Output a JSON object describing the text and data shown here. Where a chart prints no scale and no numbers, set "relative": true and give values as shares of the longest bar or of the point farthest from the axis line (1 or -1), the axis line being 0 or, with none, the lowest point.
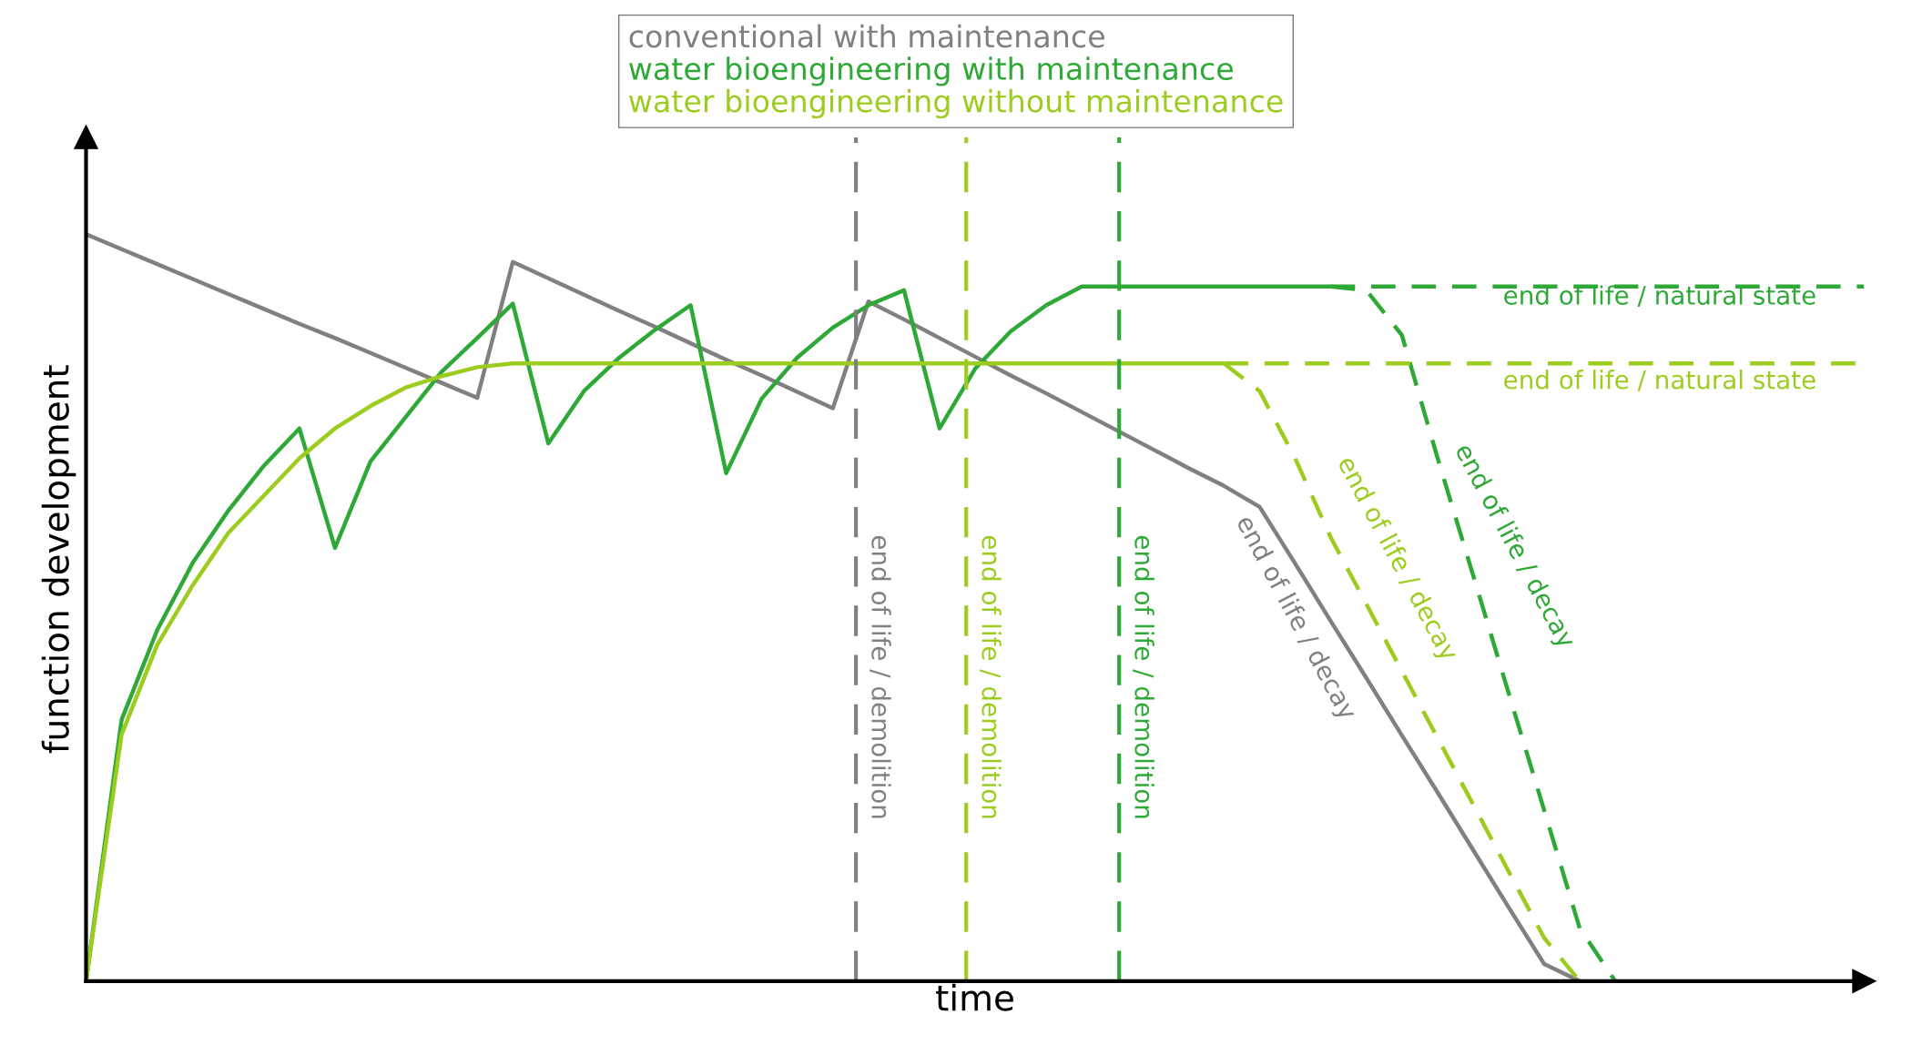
{
  "chart_data": {
    "type": "line",
    "relative": true,
    "xlabel": "time",
    "ylabel": "function development",
    "legend": "top",
    "marker": "none",
    "categories": [
      null,
      null,
      null,
      null,
      null,
      null,
      null,
      null,
      null,
      null,
      null,
      null,
      null,
      null,
      null,
      null,
      null,
      null,
      null,
      null,
      null,
      null,
      null,
      null,
      null,
      null,
      null,
      null,
      null,
      null,
      null,
      null,
      null,
      null,
      null,
      null,
      null,
      null,
      null,
      null,
      null,
      null,
      null,
      null,
      null,
      null,
      null,
      null,
      null,
      null,
      null
    ],
    "series": [
      {
        "name": "conventional with maintenance",
        "color": "#808080",
        "line_style": "solid",
        "values": [
          1.0,
          0.98,
          0.96,
          0.94,
          0.92,
          0.9,
          0.88,
          0.861,
          0.841,
          0.821,
          0.801,
          0.781,
          0.963,
          0.941,
          0.919,
          0.897,
          0.876,
          0.854,
          0.832,
          0.811,
          0.789,
          0.767,
          0.91,
          0.886,
          0.861,
          0.836,
          0.811,
          0.787,
          0.762,
          0.737,
          0.712,
          0.687,
          0.663,
          0.635,
          0.559,
          0.482,
          0.406,
          0.329,
          0.253,
          0.176,
          0.099,
          0.023,
          0,
          null,
          null,
          null,
          null,
          null,
          null,
          null,
          null
        ]
      },
      {
        "name": "water bioengineering with maintenance",
        "color": "#2ea836",
        "line_style": "solid",
        "values": [
          0,
          0.35,
          0.47,
          0.56,
          0.63,
          0.69,
          0.74,
          0.58,
          0.696,
          0.756,
          0.816,
          0.861,
          0.907,
          0.72,
          0.79,
          0.835,
          0.872,
          0.905,
          0.68,
          0.78,
          0.835,
          0.875,
          0.905,
          0.925,
          0.74,
          0.82,
          0.87,
          0.905,
          0.93,
          0.93,
          0.93,
          0.93,
          0.93,
          0.93,
          0.93,
          0.93,
          null,
          null,
          null,
          null,
          null,
          null,
          null,
          null,
          null,
          null,
          null,
          null,
          null,
          null,
          null
        ]
      },
      {
        "name": "water bioengineering without maintenance",
        "color": "#9ccc1e",
        "line_style": "solid",
        "values": [
          0,
          0.33,
          0.45,
          0.53,
          0.6,
          0.65,
          0.7,
          0.74,
          0.77,
          0.795,
          0.81,
          0.822,
          0.827,
          0.827,
          0.827,
          0.827,
          0.827,
          0.827,
          0.827,
          0.827,
          0.827,
          0.827,
          0.827,
          0.827,
          0.827,
          0.827,
          0.827,
          0.827,
          0.827,
          0.827,
          0.827,
          0.827,
          0.827,
          null,
          null,
          null,
          null,
          null,
          null,
          null,
          null,
          null,
          null,
          null,
          null,
          null,
          null,
          null,
          null,
          null,
          null
        ]
      },
      {
        "color": "#2ea836",
        "line_style": "dashed",
        "values": [
          null,
          null,
          null,
          null,
          null,
          null,
          null,
          null,
          null,
          null,
          null,
          null,
          null,
          null,
          null,
          null,
          null,
          null,
          null,
          null,
          null,
          null,
          null,
          null,
          null,
          null,
          null,
          null,
          null,
          null,
          null,
          null,
          null,
          null,
          null,
          0.93,
          0.93,
          0.93,
          0.93,
          0.93,
          0.93,
          0.93,
          0.93,
          0.93,
          0.93,
          0.93,
          0.93,
          0.93,
          0.93,
          0.93,
          0.93
        ]
      },
      {
        "color": "#2ea836",
        "line_style": "dashed",
        "values": [
          null,
          null,
          null,
          null,
          null,
          null,
          null,
          null,
          null,
          null,
          null,
          null,
          null,
          null,
          null,
          null,
          null,
          null,
          null,
          null,
          null,
          null,
          null,
          null,
          null,
          null,
          null,
          null,
          null,
          null,
          null,
          null,
          null,
          null,
          null,
          0.93,
          0.925,
          0.865,
          0.701,
          0.544,
          0.386,
          0.229,
          0.071,
          0,
          null,
          null,
          null,
          null,
          null,
          null,
          null
        ]
      },
      {
        "color": "#9ccc1e",
        "line_style": "dashed",
        "values": [
          null,
          null,
          null,
          null,
          null,
          null,
          null,
          null,
          null,
          null,
          null,
          null,
          null,
          null,
          null,
          null,
          null,
          null,
          null,
          null,
          null,
          null,
          null,
          null,
          null,
          null,
          null,
          null,
          null,
          null,
          null,
          null,
          0.827,
          0.827,
          0.827,
          0.827,
          0.827,
          0.827,
          0.827,
          0.827,
          0.827,
          0.827,
          0.827,
          0.827,
          0.827,
          0.827,
          0.827,
          0.827,
          0.827,
          0.827,
          0.827
        ]
      },
      {
        "color": "#9ccc1e",
        "line_style": "dashed",
        "values": [
          null,
          null,
          null,
          null,
          null,
          null,
          null,
          null,
          null,
          null,
          null,
          null,
          null,
          null,
          null,
          null,
          null,
          null,
          null,
          null,
          null,
          null,
          null,
          null,
          null,
          null,
          null,
          null,
          null,
          null,
          null,
          null,
          0.827,
          0.79,
          0.7,
          0.594,
          0.505,
          0.415,
          0.326,
          0.237,
          0.147,
          0.058,
          0,
          null,
          null,
          null,
          null,
          null,
          null,
          null,
          null
        ]
      }
    ],
    "annotations": [
      "end of life / natural state",
      "end of life / natural state",
      "end of life / decay",
      "end of life / decay",
      "end of life / decay",
      "end of life / demolition",
      "end of life / demolition",
      "end of life / demolition"
    ]
  }
}
